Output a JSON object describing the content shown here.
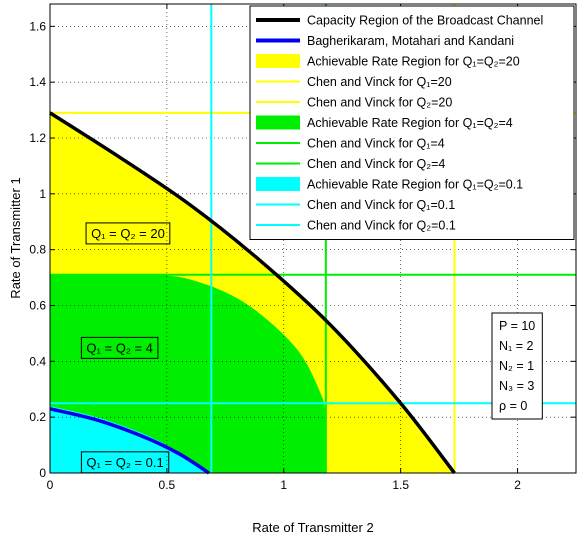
{
  "chart_data": {
    "type": "area",
    "xlabel": "Rate of Transmitter 2",
    "ylabel": "Rate of Transmitter 1",
    "xlim": [
      0,
      2.25
    ],
    "ylim": [
      0,
      1.68
    ],
    "x_ticks": [
      "0",
      "0.5",
      "1",
      "1.5",
      "2"
    ],
    "x_tick_values": [
      0,
      0.5,
      1,
      1.5,
      2
    ],
    "y_ticks": [
      "0",
      "0.2",
      "0.4",
      "0.6",
      "0.8",
      "1",
      "1.2",
      "1.4",
      "1.6"
    ],
    "y_tick_values": [
      0,
      0.2,
      0.4,
      0.6,
      0.8,
      1,
      1.2,
      1.4,
      1.6
    ],
    "grid": true,
    "legend_position": "top-right",
    "colors": {
      "capacity": "#000000",
      "bmk": "#0000ee",
      "q20": "#ffff00",
      "q4": "#00ee00",
      "q01": "#00ffff"
    },
    "capacity_region": {
      "x": [
        0,
        0.3,
        0.6,
        0.9,
        1.2,
        1.5,
        1.73
      ],
      "y": [
        1.29,
        1.13,
        0.96,
        0.76,
        0.53,
        0.25,
        0.0
      ]
    },
    "bmk_curve": {
      "x": [
        0,
        0.2,
        0.4,
        0.55,
        0.68
      ],
      "y": [
        0.23,
        0.19,
        0.13,
        0.07,
        0.0
      ]
    },
    "region_q20": {
      "x": [
        0,
        0,
        0.3,
        0.6,
        0.9,
        1.2,
        1.5,
        1.73
      ],
      "y": [
        0,
        1.29,
        1.13,
        0.96,
        0.76,
        0.53,
        0.25,
        0.0
      ]
    },
    "region_q4": {
      "x": [
        0,
        0,
        0.45,
        0.65,
        0.85,
        1.05,
        1.15,
        1.18,
        1.18
      ],
      "y": [
        0,
        0.71,
        0.71,
        0.68,
        0.6,
        0.45,
        0.3,
        0.2,
        0.0
      ]
    },
    "region_q01": {
      "x": [
        0,
        0,
        0.2,
        0.4,
        0.55,
        0.68
      ],
      "y": [
        0,
        0.24,
        0.2,
        0.14,
        0.075,
        0.0
      ]
    },
    "chen_vinck_lines": {
      "q20_q1_y": 1.29,
      "q20_q2_x": 1.73,
      "q4_q1_y": 0.71,
      "q4_q2_x": 1.18,
      "q01_q1_y": 0.25,
      "q01_q2_x": 0.69
    },
    "legend": [
      {
        "label": "Capacity Region of the Broadcast Channel",
        "kind": "line",
        "color": "#000000",
        "width": 4
      },
      {
        "label": "Bagherikaram, Motahari and Kandani",
        "kind": "line",
        "color": "#0000ee",
        "width": 4
      },
      {
        "label": "Achievable Rate Region for Q₁=Q₂=20",
        "kind": "patch",
        "color": "#ffff00"
      },
      {
        "label": "Chen and Vinck for Q₁=20",
        "kind": "line",
        "color": "#ffff00",
        "width": 2
      },
      {
        "label": "Chen and Vinck for Q₂=20",
        "kind": "line",
        "color": "#ffff00",
        "width": 2
      },
      {
        "label": "Achievable Rate Region for Q₁=Q₂=4",
        "kind": "patch",
        "color": "#00ee00"
      },
      {
        "label": "Chen and Vinck for Q₁=4",
        "kind": "line",
        "color": "#00ee00",
        "width": 2
      },
      {
        "label": "Chen and Vinck for Q₂=4",
        "kind": "line",
        "color": "#00ee00",
        "width": 2
      },
      {
        "label": "Achievable Rate Region for Q₁=Q₂=0.1",
        "kind": "patch",
        "color": "#00ffff"
      },
      {
        "label": "Chen and Vinck for Q₁=0.1",
        "kind": "line",
        "color": "#00ffff",
        "width": 2
      },
      {
        "label": "Chen and Vinck for Q₂=0.1",
        "kind": "line",
        "color": "#00ffff",
        "width": 2
      }
    ],
    "annotations": [
      {
        "text": "Q₁ = Q₂ = 20",
        "x": 0.15,
        "y": 0.86
      },
      {
        "text": "Q₁ = Q₂ = 4",
        "x": 0.13,
        "y": 0.45
      },
      {
        "text": "Q₁ = Q₂ = 0.1",
        "x": 0.13,
        "y": 0.04
      }
    ],
    "parameters": [
      "P = 10",
      "N₁ = 2",
      "N₂ = 1",
      "N₃ = 3",
      "ρ = 0"
    ]
  }
}
